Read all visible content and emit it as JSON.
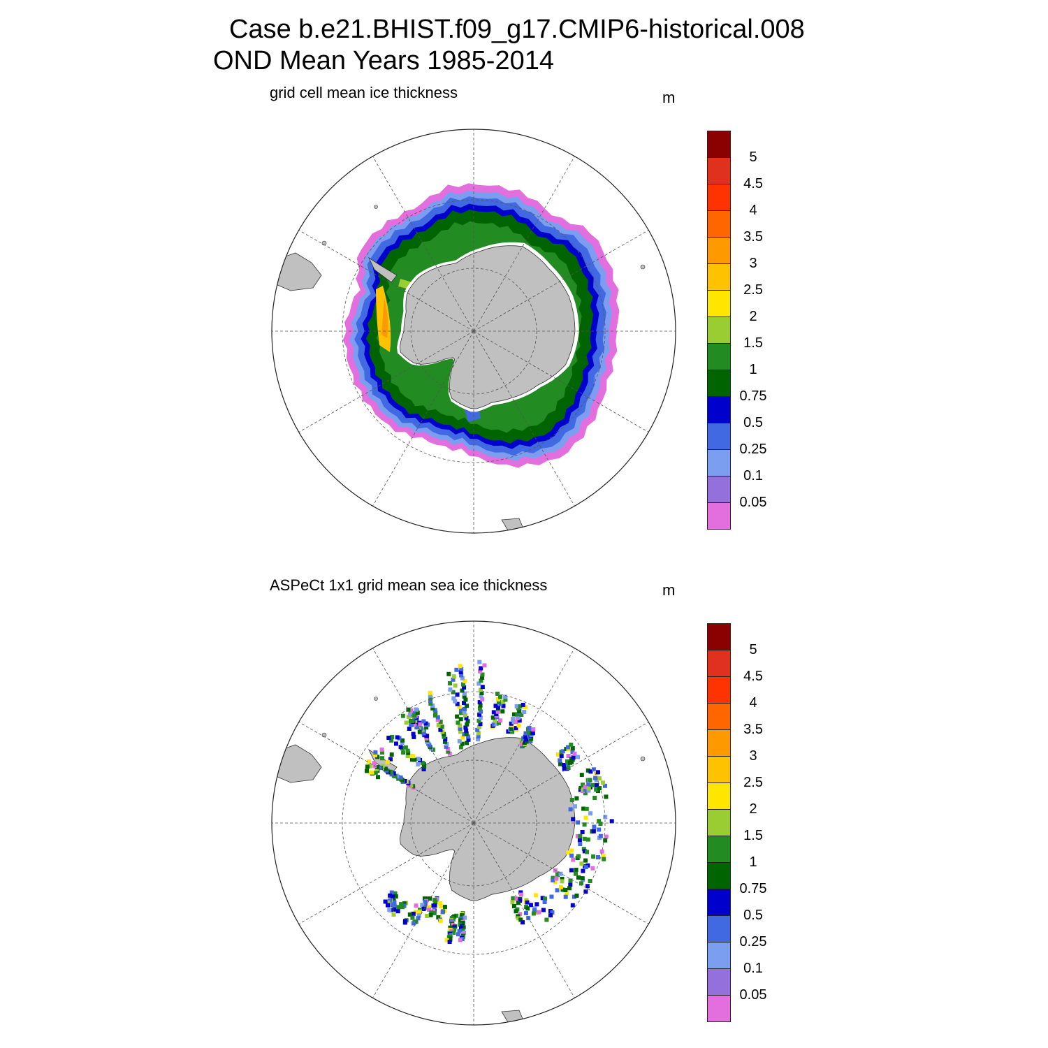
{
  "header": {
    "title_line1": "Case b.e21.BHIST.f09_g17.CMIP6-historical.008",
    "title_line2": "OND Mean   Years 1985-2014"
  },
  "panels": [
    {
      "id": "model",
      "label": "grid cell mean ice thickness",
      "unit": "m",
      "style": "continuous"
    },
    {
      "id": "obs",
      "label": "ASPeCt 1x1 grid mean sea ice thickness",
      "unit": "m",
      "style": "ship-tracks"
    }
  ],
  "colorbar": {
    "tick_labels": [
      "5",
      "4.5",
      "4",
      "3.5",
      "3",
      "2.5",
      "2",
      "1.5",
      "1",
      "0.75",
      "0.5",
      "0.25",
      "0.1",
      "0.05"
    ],
    "colors_top_to_bottom": [
      "#8b0000",
      "#e0301e",
      "#ff3300",
      "#ff6600",
      "#ff9900",
      "#ffc200",
      "#ffe600",
      "#9acd32",
      "#228b22",
      "#006400",
      "#0000cd",
      "#4169e1",
      "#7b9ef0",
      "#9370db",
      "#e36fde"
    ]
  },
  "map": {
    "projection": "south polar stereographic",
    "land_color": "#c0c0c0",
    "graticule": "dashed meridians every 30°, dashed latitude circles"
  }
}
